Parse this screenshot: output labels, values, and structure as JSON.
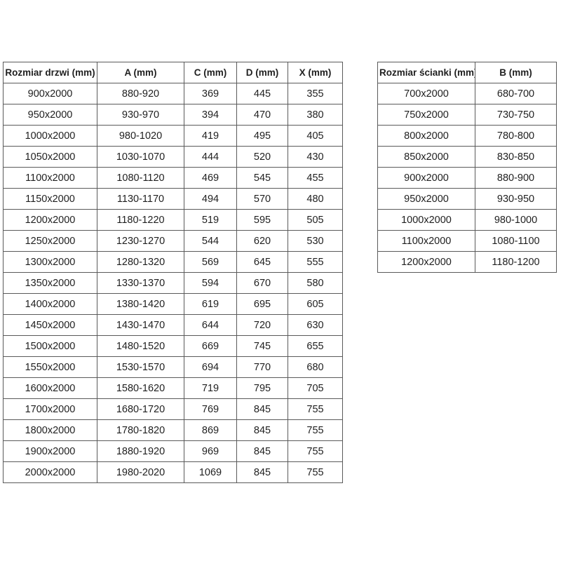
{
  "colors": {
    "table_border": "#5a5a5a",
    "text": "#1f1f1f",
    "background": "#ffffff"
  },
  "tables": {
    "door_table": {
      "headers": [
        "Rozmiar drzwi (mm)",
        "A (mm)",
        "C (mm)",
        "D (mm)",
        "X (mm)"
      ],
      "rows": [
        [
          "900x2000",
          "880-920",
          "369",
          "445",
          "355"
        ],
        [
          "950x2000",
          "930-970",
          "394",
          "470",
          "380"
        ],
        [
          "1000x2000",
          "980-1020",
          "419",
          "495",
          "405"
        ],
        [
          "1050x2000",
          "1030-1070",
          "444",
          "520",
          "430"
        ],
        [
          "1100x2000",
          "1080-1120",
          "469",
          "545",
          "455"
        ],
        [
          "1150x2000",
          "1130-1170",
          "494",
          "570",
          "480"
        ],
        [
          "1200x2000",
          "1180-1220",
          "519",
          "595",
          "505"
        ],
        [
          "1250x2000",
          "1230-1270",
          "544",
          "620",
          "530"
        ],
        [
          "1300x2000",
          "1280-1320",
          "569",
          "645",
          "555"
        ],
        [
          "1350x2000",
          "1330-1370",
          "594",
          "670",
          "580"
        ],
        [
          "1400x2000",
          "1380-1420",
          "619",
          "695",
          "605"
        ],
        [
          "1450x2000",
          "1430-1470",
          "644",
          "720",
          "630"
        ],
        [
          "1500x2000",
          "1480-1520",
          "669",
          "745",
          "655"
        ],
        [
          "1550x2000",
          "1530-1570",
          "694",
          "770",
          "680"
        ],
        [
          "1600x2000",
          "1580-1620",
          "719",
          "795",
          "705"
        ],
        [
          "1700x2000",
          "1680-1720",
          "769",
          "845",
          "755"
        ],
        [
          "1800x2000",
          "1780-1820",
          "869",
          "845",
          "755"
        ],
        [
          "1900x2000",
          "1880-1920",
          "969",
          "845",
          "755"
        ],
        [
          "2000x2000",
          "1980-2020",
          "1069",
          "845",
          "755"
        ]
      ]
    },
    "wall_table": {
      "headers": [
        "Rozmiar ścianki (mm)",
        "B (mm)"
      ],
      "rows": [
        [
          "700x2000",
          "680-700"
        ],
        [
          "750x2000",
          "730-750"
        ],
        [
          "800x2000",
          "780-800"
        ],
        [
          "850x2000",
          "830-850"
        ],
        [
          "900x2000",
          "880-900"
        ],
        [
          "950x2000",
          "930-950"
        ],
        [
          "1000x2000",
          "980-1000"
        ],
        [
          "1100x2000",
          "1080-1100"
        ],
        [
          "1200x2000",
          "1180-1200"
        ]
      ]
    }
  }
}
